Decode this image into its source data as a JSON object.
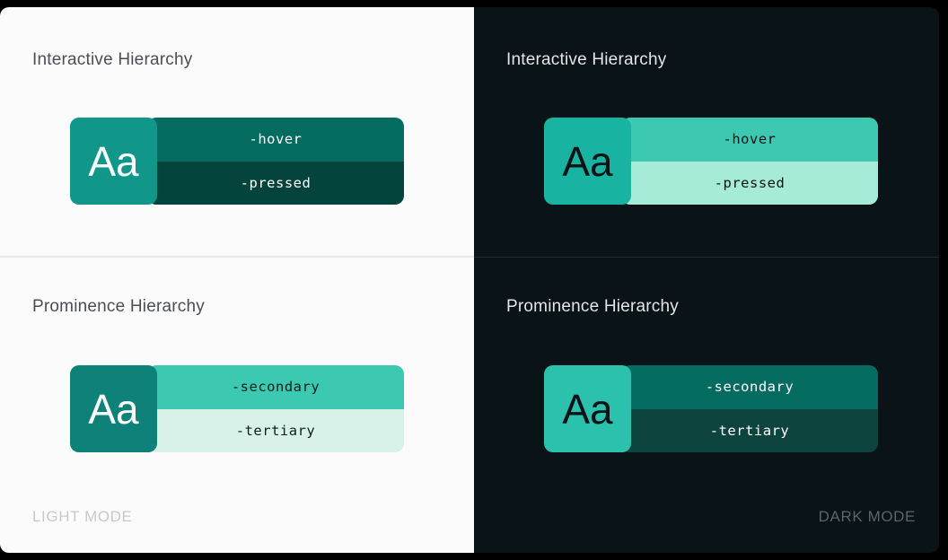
{
  "panels": {
    "light": {
      "mode_label": "LIGHT MODE",
      "sections": {
        "interactive": {
          "title": "Interactive Hierarchy",
          "swatch": "Aa",
          "bar1": "-hover",
          "bar2": "-pressed"
        },
        "prominence": {
          "title": "Prominence Hierarchy",
          "swatch": "Aa",
          "bar1": "-secondary",
          "bar2": "-tertiary"
        }
      }
    },
    "dark": {
      "mode_label": "DARK MODE",
      "sections": {
        "interactive": {
          "title": "Interactive Hierarchy",
          "swatch": "Aa",
          "bar1": "-hover",
          "bar2": "-pressed"
        },
        "prominence": {
          "title": "Prominence Hierarchy",
          "swatch": "Aa",
          "bar1": "-secondary",
          "bar2": "-tertiary"
        }
      }
    }
  },
  "colors": {
    "page_bg": "#000000",
    "light_bg": "#fbfbfb",
    "dark_bg": "#0a1317",
    "light_title": "#4a4f54",
    "dark_title": "#e3e5e6",
    "light_mode_label": "#c6c9cb",
    "dark_mode_label": "#5a646b",
    "divider_light": "#e9e9e9",
    "divider_dark": "#202a30",
    "teal_interactive_light": "#11978a",
    "teal_primary_light": "#0e8278",
    "teal_interactive_dark": "#18b4a1",
    "teal_primary_dark": "#2bc1ad",
    "hover_light": "#046b61",
    "pressed_light": "#05433d",
    "secondary_light": "#3dc9b1",
    "tertiary_light": "#d8f1e9",
    "hover_dark": "#3dc9b1",
    "pressed_dark": "#a6ebd7",
    "secondary_dark": "#046b61",
    "tertiary_dark": "#0d453e",
    "on_teal_light": "#ffffff",
    "on_teal_dark": "#0a1317",
    "on_mint": "#10201d",
    "on_deep_teal": "#ffffff"
  }
}
